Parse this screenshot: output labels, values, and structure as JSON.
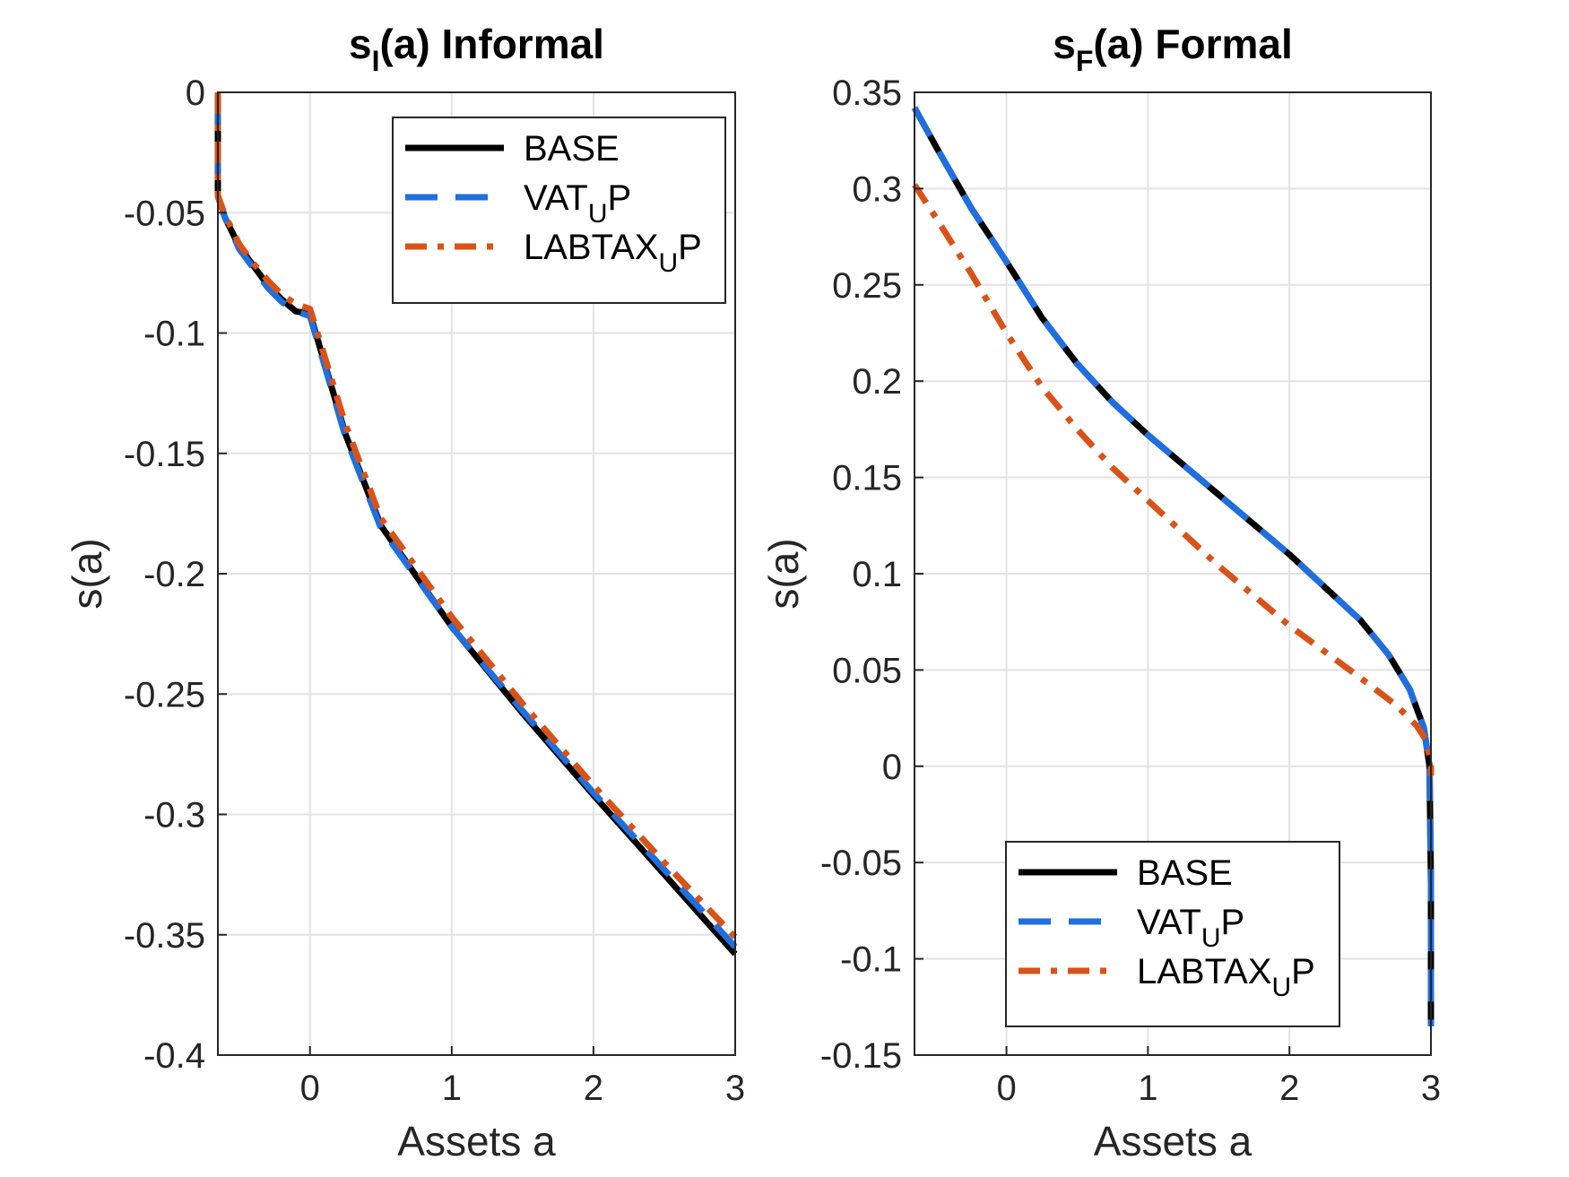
{
  "chart_data": [
    {
      "type": "line",
      "title": {
        "main": "s",
        "sub": "I",
        "rest": "(a) Informal"
      },
      "xlabel": "Assets a",
      "ylabel": "s(a)",
      "xlim": [
        -0.65,
        3.0
      ],
      "ylim": [
        -0.4,
        0.0
      ],
      "xticks": [
        0,
        1,
        2,
        3
      ],
      "yticks": [
        0,
        -0.05,
        -0.1,
        -0.15,
        -0.2,
        -0.25,
        -0.3,
        -0.35,
        -0.4
      ],
      "ytick_labels": [
        "0",
        "-0.05",
        "-0.1",
        "-0.15",
        "-0.2",
        "-0.25",
        "-0.3",
        "-0.35",
        "-0.4"
      ],
      "xtick_labels": [
        "0",
        "1",
        "2",
        "3"
      ],
      "grid": true,
      "legend_position": "top-right",
      "series": [
        {
          "name": "BASE",
          "legend": {
            "main": "BASE",
            "sub": "",
            "rest": ""
          },
          "color": "#000000",
          "dash": "solid",
          "x": [
            -0.65,
            -0.65,
            -0.6,
            -0.5,
            -0.4,
            -0.3,
            -0.2,
            -0.1,
            0.0,
            0.25,
            0.5,
            1.0,
            1.5,
            2.0,
            2.5,
            3.0
          ],
          "y": [
            0.0,
            -0.043,
            -0.052,
            -0.064,
            -0.072,
            -0.08,
            -0.086,
            -0.091,
            -0.092,
            -0.142,
            -0.18,
            -0.222,
            -0.258,
            -0.292,
            -0.325,
            -0.358
          ]
        },
        {
          "name": "VATUP",
          "legend": {
            "main": "VAT",
            "sub": "U",
            "rest": "P"
          },
          "color": "#1f6fe0",
          "dash": "dashed",
          "x": [
            -0.65,
            -0.65,
            -0.6,
            -0.5,
            -0.4,
            -0.3,
            -0.2,
            -0.1,
            0.0,
            0.25,
            0.5,
            1.0,
            1.5,
            2.0,
            2.5,
            3.0
          ],
          "y": [
            0.0,
            -0.043,
            -0.052,
            -0.065,
            -0.073,
            -0.081,
            -0.087,
            -0.091,
            -0.093,
            -0.143,
            -0.181,
            -0.222,
            -0.257,
            -0.291,
            -0.323,
            -0.355
          ]
        },
        {
          "name": "LABTAXUP",
          "legend": {
            "main": "LABTAX",
            "sub": "U",
            "rest": "P"
          },
          "color": "#d95319",
          "dash": "dashdot",
          "x": [
            -0.65,
            -0.65,
            -0.6,
            -0.5,
            -0.4,
            -0.3,
            -0.2,
            -0.1,
            0.0,
            0.25,
            0.5,
            1.0,
            1.5,
            2.0,
            2.5,
            3.0
          ],
          "y": [
            0.0,
            -0.043,
            -0.051,
            -0.063,
            -0.071,
            -0.078,
            -0.084,
            -0.088,
            -0.09,
            -0.138,
            -0.177,
            -0.218,
            -0.254,
            -0.288,
            -0.32,
            -0.351
          ]
        }
      ]
    },
    {
      "type": "line",
      "title": {
        "main": "s",
        "sub": "F",
        "rest": "(a) Formal"
      },
      "xlabel": "Assets a",
      "ylabel": "s(a)",
      "xlim": [
        -0.65,
        3.0
      ],
      "ylim": [
        -0.15,
        0.35
      ],
      "xticks": [
        0,
        1,
        2,
        3
      ],
      "yticks": [
        0.35,
        0.3,
        0.25,
        0.2,
        0.15,
        0.1,
        0.05,
        0,
        -0.05,
        -0.1,
        -0.15
      ],
      "ytick_labels": [
        "0.35",
        "0.3",
        "0.25",
        "0.2",
        "0.15",
        "0.1",
        "0.05",
        "0",
        "-0.05",
        "-0.1",
        "-0.15"
      ],
      "xtick_labels": [
        "0",
        "1",
        "2",
        "3"
      ],
      "grid": true,
      "legend_position": "bottom-right",
      "series": [
        {
          "name": "BASE",
          "legend": {
            "main": "BASE",
            "sub": "",
            "rest": ""
          },
          "color": "#000000",
          "dash": "solid",
          "x": [
            -0.65,
            -0.5,
            -0.25,
            0.0,
            0.25,
            0.5,
            0.75,
            1.0,
            1.5,
            2.0,
            2.5,
            2.7,
            2.85,
            2.95,
            2.99,
            3.0,
            3.0
          ],
          "y": [
            0.342,
            0.322,
            0.29,
            0.262,
            0.233,
            0.209,
            0.189,
            0.172,
            0.141,
            0.11,
            0.076,
            0.058,
            0.04,
            0.02,
            0.0,
            -0.06,
            -0.135
          ]
        },
        {
          "name": "VATUP",
          "legend": {
            "main": "VAT",
            "sub": "U",
            "rest": "P"
          },
          "color": "#1f6fe0",
          "dash": "dashed",
          "x": [
            -0.65,
            -0.5,
            -0.25,
            0.0,
            0.25,
            0.5,
            0.75,
            1.0,
            1.5,
            2.0,
            2.5,
            2.7,
            2.85,
            2.95,
            2.99,
            3.0,
            3.0
          ],
          "y": [
            0.342,
            0.322,
            0.29,
            0.262,
            0.233,
            0.209,
            0.189,
            0.172,
            0.141,
            0.11,
            0.076,
            0.058,
            0.04,
            0.02,
            0.0,
            -0.06,
            -0.135
          ]
        },
        {
          "name": "LABTAXUP",
          "legend": {
            "main": "LABTAX",
            "sub": "U",
            "rest": "P"
          },
          "color": "#d95319",
          "dash": "dashdot",
          "x": [
            -0.65,
            -0.5,
            -0.25,
            0.0,
            0.25,
            0.5,
            0.75,
            1.0,
            1.5,
            2.0,
            2.5,
            2.75,
            2.9,
            2.97,
            3.0,
            3.0
          ],
          "y": [
            0.302,
            0.285,
            0.256,
            0.225,
            0.197,
            0.175,
            0.155,
            0.138,
            0.104,
            0.073,
            0.046,
            0.032,
            0.021,
            0.013,
            0.0,
            -0.005
          ]
        }
      ]
    }
  ]
}
